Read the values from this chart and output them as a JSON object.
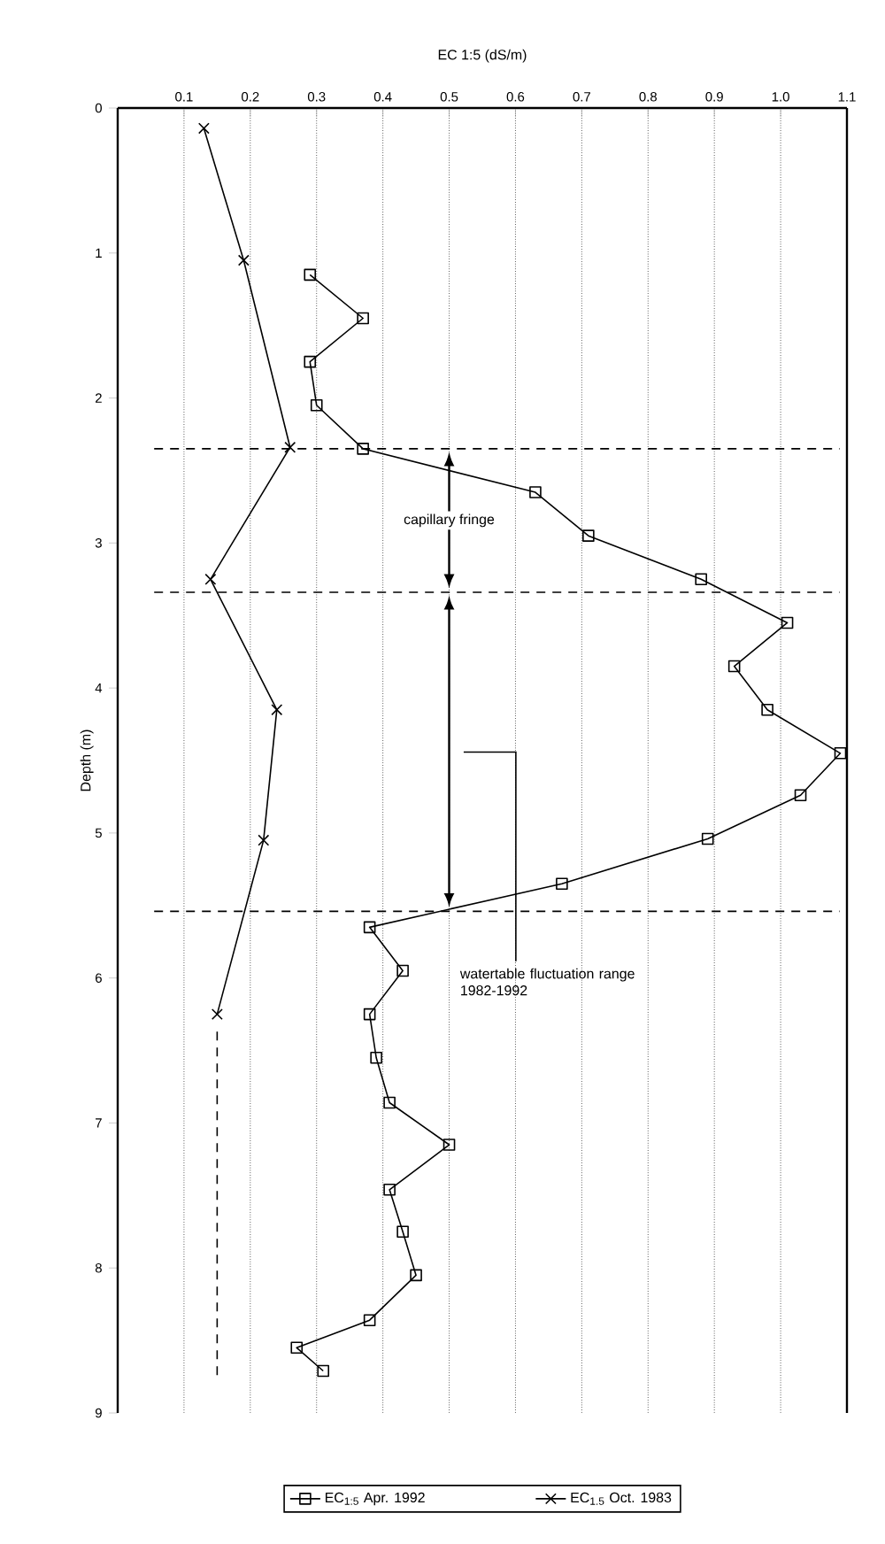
{
  "chart_data": {
    "type": "line",
    "xlabel": "EC 1:5 (dS/m)",
    "ylabel": "Depth (m)",
    "xlim": [
      0,
      1.1
    ],
    "xticks": [
      0.1,
      0.2,
      0.3,
      0.4,
      0.5,
      0.6,
      0.7,
      0.8,
      0.9,
      {
        "value": 1.0,
        "label": "1.0"
      },
      1.1
    ],
    "ylim": [
      9,
      0
    ],
    "yticks": [
      0,
      1,
      2,
      3,
      4,
      5,
      6,
      7,
      8,
      9
    ],
    "grid": "x",
    "legend": "bottom",
    "series": [
      {
        "name": "EC$_{1:5}$ Apr. 1992",
        "color": "#000000",
        "marker": "square",
        "line_style": "solid",
        "x": [
          0.29,
          0.37,
          0.29,
          0.3,
          0.37,
          0.63,
          0.71,
          0.88,
          1.01,
          0.93,
          0.98,
          1.09,
          1.03,
          0.89,
          0.67,
          0.38,
          0.43,
          0.38,
          0.39,
          0.41,
          0.5,
          0.41,
          0.43,
          0.45,
          0.38,
          0.27,
          0.31
        ],
        "values": [
          1.15,
          1.45,
          1.75,
          2.05,
          2.35,
          2.65,
          2.95,
          3.25,
          3.55,
          3.85,
          4.15,
          4.45,
          4.74,
          5.04,
          5.35,
          5.65,
          5.95,
          6.25,
          6.55,
          6.86,
          7.15,
          7.46,
          7.75,
          8.05,
          8.36,
          8.55,
          8.71
        ]
      },
      {
        "name": "EC$_{1.5}$ Oct. 1983",
        "color": "#000000",
        "marker": "cross",
        "line_style": "solid",
        "x": [
          0.13,
          0.19,
          0.26,
          0.14,
          0.24,
          0.22,
          0.15
        ],
        "values": [
          0.14,
          1.05,
          2.34,
          3.25,
          4.15,
          5.05,
          6.25
        ]
      },
      {
        "color": "#000000",
        "marker": "none",
        "line_style": "dashed",
        "x": [
          0.15,
          0.15
        ],
        "values": [
          6.37,
          8.78
        ]
      }
    ],
    "ref_lines": [
      {
        "axis": "y",
        "value": 2.35,
        "line_style": "dashed"
      },
      {
        "axis": "y",
        "value": 3.34,
        "line_style": "dashed"
      },
      {
        "axis": "y",
        "value": 5.54,
        "line_style": "dashed"
      }
    ],
    "annotations": [
      "capillary fringe",
      "watertable fluctuation range 1982-1992"
    ]
  }
}
